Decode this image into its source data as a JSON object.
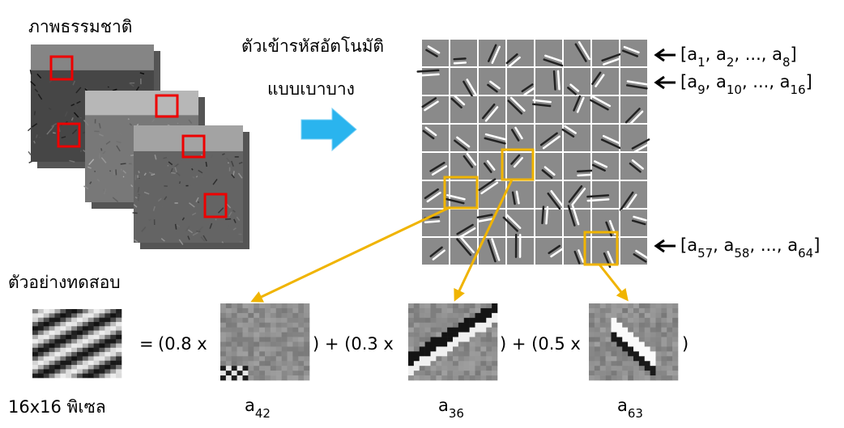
{
  "natural_images": {
    "title": "ภาพธรรมชาติ"
  },
  "encoder": {
    "title": "ตัวเข้ารหัสอัตโนมัติ",
    "subtitle": "แบบเบาบาง"
  },
  "basis_rows": [
    {
      "parts": [
        {
          "text": "[a"
        },
        {
          "sub": "1"
        },
        {
          "text": ", a"
        },
        {
          "sub": "2"
        },
        {
          "text": ", ..., a"
        },
        {
          "sub": "8"
        },
        {
          "text": "]"
        }
      ]
    },
    {
      "parts": [
        {
          "text": "[a"
        },
        {
          "sub": "9"
        },
        {
          "text": ", a"
        },
        {
          "sub": "10"
        },
        {
          "text": ", ..., a"
        },
        {
          "sub": "16"
        },
        {
          "text": "]"
        }
      ]
    },
    {
      "parts": [
        {
          "text": "[a"
        },
        {
          "sub": "57"
        },
        {
          "text": ", a"
        },
        {
          "sub": "58"
        },
        {
          "text": ", ..., a"
        },
        {
          "sub": "64"
        },
        {
          "text": "]"
        }
      ]
    }
  ],
  "test": {
    "title": "ตัวอย่างทดสอบ",
    "caption": "16x16 พิเซล"
  },
  "equation": {
    "equals": "=",
    "terms": [
      {
        "text": "(0.8 x",
        "label": {
          "base": "a",
          "sub": "42"
        }
      },
      {
        "text": ") + (0.3 x",
        "label": {
          "base": "a",
          "sub": "36"
        }
      },
      {
        "text": ") + (0.5 x",
        "label": {
          "base": "a",
          "sub": "63"
        }
      }
    ],
    "close": ")"
  }
}
